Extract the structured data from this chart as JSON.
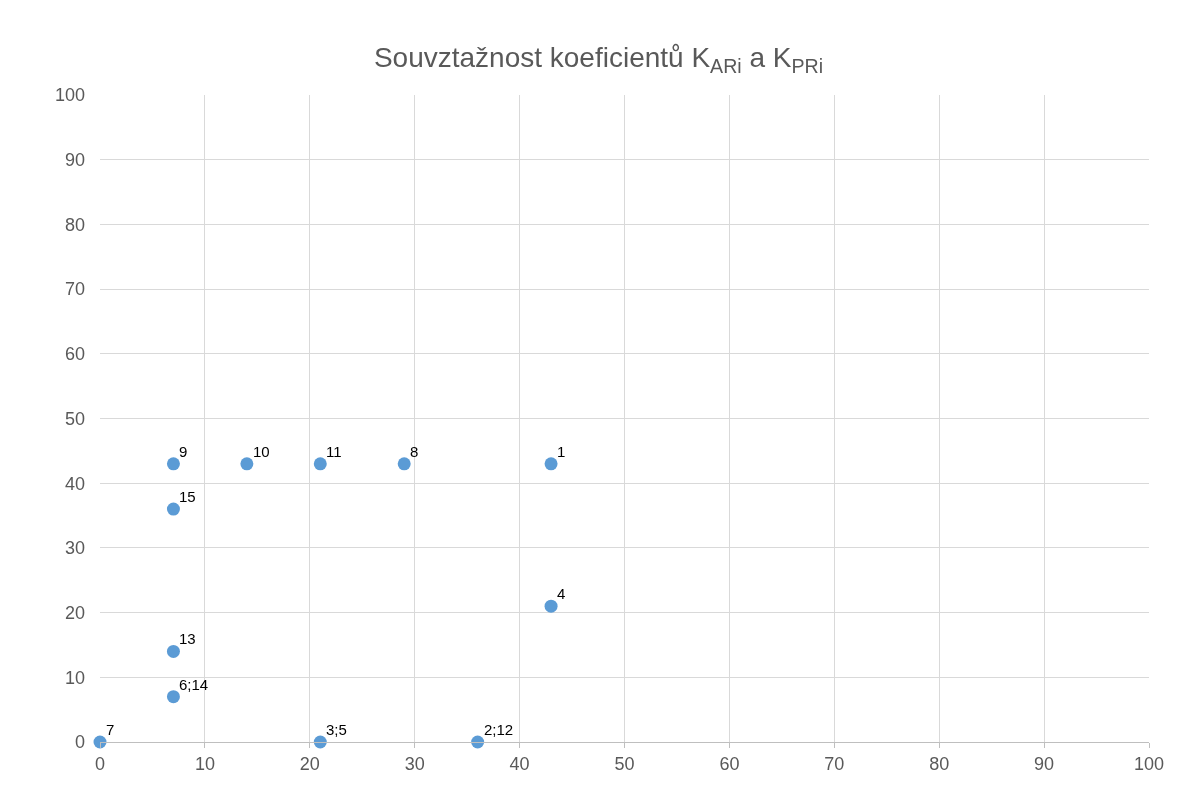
{
  "chart_data": {
    "type": "scatter",
    "title": "Souvztažnost koeficientů K$_{ARi}$ a K$_{PRi}$",
    "x": [
      43,
      36,
      21,
      43,
      7,
      0,
      29,
      7,
      14,
      21,
      7,
      7
    ],
    "values": [
      43,
      0,
      0,
      21,
      7,
      0,
      43,
      43,
      43,
      43,
      14,
      36
    ],
    "annotations": [
      {
        "text": "1",
        "x": 43,
        "y": 43
      },
      {
        "text": "2;12",
        "x": 36,
        "y": 0
      },
      {
        "text": "3;5",
        "x": 21,
        "y": 0
      },
      {
        "text": "4",
        "x": 43,
        "y": 21
      },
      {
        "text": "6;14",
        "x": 7,
        "y": 7
      },
      {
        "text": "7",
        "x": 0,
        "y": 0
      },
      {
        "text": "8",
        "x": 29,
        "y": 43
      },
      {
        "text": "9",
        "x": 7,
        "y": 43
      },
      {
        "text": "10",
        "x": 14,
        "y": 43
      },
      {
        "text": "11",
        "x": 21,
        "y": 43
      },
      {
        "text": "13",
        "x": 7,
        "y": 14
      },
      {
        "text": "15",
        "x": 7,
        "y": 36
      }
    ],
    "color": "#5b9bd5",
    "marker": "circle",
    "xlim": [
      0,
      100
    ],
    "xticks": [
      0,
      10,
      20,
      30,
      40,
      50,
      60,
      70,
      80,
      90,
      100
    ],
    "ylim": [
      0,
      100
    ],
    "yticks": [
      0,
      10,
      20,
      30,
      40,
      50,
      60,
      70,
      80,
      90,
      100
    ],
    "grid": true,
    "legend": false
  }
}
